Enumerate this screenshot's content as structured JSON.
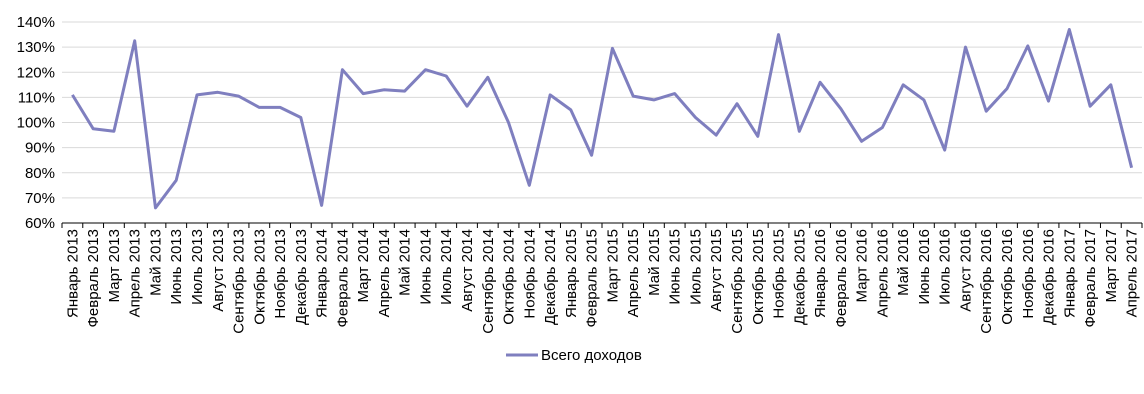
{
  "chart_data": {
    "type": "line",
    "title": "",
    "xlabel": "",
    "ylabel": "",
    "ylim": [
      60,
      140
    ],
    "yticks": [
      60,
      70,
      80,
      90,
      100,
      110,
      120,
      130,
      140
    ],
    "ytick_labels": [
      "60%",
      "70%",
      "80%",
      "90%",
      "100%",
      "110%",
      "120%",
      "130%",
      "140%"
    ],
    "grid": true,
    "legend_position": "bottom",
    "categories": [
      "Январь 2013",
      "Февраль 2013",
      "Март 2013",
      "Апрель 2013",
      "Май 2013",
      "Июнь 2013",
      "Июль 2013",
      "Август 2013",
      "Сентябрь 2013",
      "Октябрь 2013",
      "Ноябрь 2013",
      "Декабрь 2013",
      "Январь 2014",
      "Февраль 2014",
      "Март 2014",
      "Апрель 2014",
      "Май 2014",
      "Июнь 2014",
      "Июль 2014",
      "Август 2014",
      "Сентябрь 2014",
      "Октябрь 2014",
      "Ноябрь 2014",
      "Декабрь 2014",
      "Январь 2015",
      "Февраль 2015",
      "Март 2015",
      "Апрель 2015",
      "Май 2015",
      "Июнь 2015",
      "Июль 2015",
      "Август 2015",
      "Сентябрь 2015",
      "Октябрь 2015",
      "Ноябрь 2015",
      "Декабрь 2015",
      "Январь 2016",
      "Февраль 2016",
      "Март 2016",
      "Апрель 2016",
      "Май 2016",
      "Июнь 2016",
      "Июль 2016",
      "Август 2016",
      "Сентябрь 2016",
      "Октябрь 2016",
      "Ноябрь 2016",
      "Декабрь 2016",
      "Январь 2017",
      "Февраль 2017",
      "Март 2017",
      "Апрель 2017"
    ],
    "series": [
      {
        "name": "Всего доходов",
        "color": "#7f7fbf",
        "values": [
          111,
          97.5,
          96.5,
          132.5,
          66,
          77,
          111,
          112,
          110.5,
          106,
          106,
          102,
          67,
          121,
          111.5,
          113,
          112.5,
          121,
          118.5,
          106.5,
          118,
          100,
          75,
          111,
          105,
          87,
          129.5,
          110.5,
          109,
          111.5,
          102,
          95,
          107.5,
          94.5,
          135,
          96.5,
          116,
          105.5,
          92.5,
          98,
          115,
          109,
          89,
          130,
          104.5,
          113.5,
          130.5,
          108.5,
          137,
          106.5,
          115,
          82
        ]
      }
    ]
  }
}
